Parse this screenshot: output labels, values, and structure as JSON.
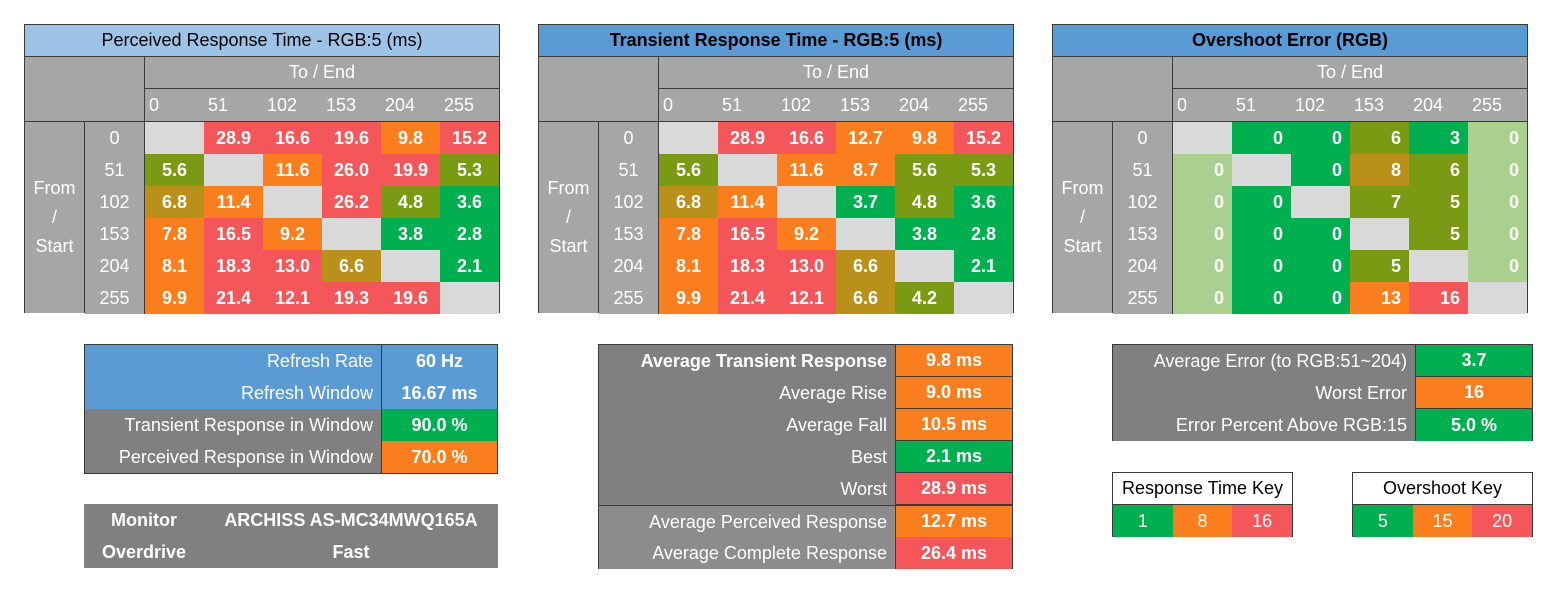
{
  "colors": {
    "green": "#00b050",
    "light_green": "#a9d08e",
    "olive": "#7a9a14",
    "mustard": "#b8901a",
    "orange": "#fa7e1e",
    "red": "#f4565a",
    "blank": "#d9d9d9",
    "gray_header": "#a6a6a6",
    "gray_dark": "#808080",
    "blue_light": "#9dc3e6",
    "blue": "#5b9bd5"
  },
  "chart_data": [
    {
      "type": "heatmap",
      "title": "Perceived Response Time - RGB:5 (ms)",
      "xlabel": "To / End",
      "ylabel": [
        "From",
        "/",
        "Start"
      ],
      "x": [
        "0",
        "51",
        "102",
        "153",
        "204",
        "255"
      ],
      "y": [
        "0",
        "51",
        "102",
        "153",
        "204",
        "255"
      ],
      "values": [
        [
          null,
          28.9,
          16.6,
          19.6,
          9.8,
          15.2
        ],
        [
          5.6,
          null,
          11.6,
          26.0,
          19.9,
          5.3
        ],
        [
          6.8,
          11.4,
          null,
          26.2,
          4.8,
          3.6
        ],
        [
          7.8,
          16.5,
          9.2,
          null,
          3.8,
          2.8
        ],
        [
          8.1,
          18.3,
          13.0,
          6.6,
          null,
          2.1
        ],
        [
          9.9,
          21.4,
          12.1,
          19.3,
          19.6,
          null
        ]
      ],
      "labels": [
        [
          "",
          "28.9",
          "16.6",
          "19.6",
          "9.8",
          "15.2"
        ],
        [
          "5.6",
          "",
          "11.6",
          "26.0",
          "19.9",
          "5.3"
        ],
        [
          "6.8",
          "11.4",
          "",
          "26.2",
          "4.8",
          "3.6"
        ],
        [
          "7.8",
          "16.5",
          "9.2",
          "",
          "3.8",
          "2.8"
        ],
        [
          "8.1",
          "18.3",
          "13.0",
          "6.6",
          "",
          "2.1"
        ],
        [
          "9.9",
          "21.4",
          "12.1",
          "19.3",
          "19.6",
          ""
        ]
      ],
      "cell_colors": [
        [
          "blank",
          "red",
          "red",
          "red",
          "orange",
          "red"
        ],
        [
          "olive",
          "blank",
          "orange",
          "red",
          "red",
          "olive"
        ],
        [
          "mustard",
          "orange",
          "blank",
          "red",
          "olive",
          "green"
        ],
        [
          "orange",
          "red",
          "orange",
          "blank",
          "green",
          "green"
        ],
        [
          "orange",
          "red",
          "red",
          "mustard",
          "blank",
          "green"
        ],
        [
          "orange",
          "red",
          "red",
          "red",
          "red",
          "blank"
        ]
      ]
    },
    {
      "type": "heatmap",
      "title": "Transient Response Time - RGB:5 (ms)",
      "xlabel": "To / End",
      "ylabel": [
        "From",
        "/",
        "Start"
      ],
      "x": [
        "0",
        "51",
        "102",
        "153",
        "204",
        "255"
      ],
      "y": [
        "0",
        "51",
        "102",
        "153",
        "204",
        "255"
      ],
      "values": [
        [
          null,
          28.9,
          16.6,
          12.7,
          9.8,
          15.2
        ],
        [
          5.6,
          null,
          11.6,
          8.7,
          5.6,
          5.3
        ],
        [
          6.8,
          11.4,
          null,
          3.7,
          4.8,
          3.6
        ],
        [
          7.8,
          16.5,
          9.2,
          null,
          3.8,
          2.8
        ],
        [
          8.1,
          18.3,
          13.0,
          6.6,
          null,
          2.1
        ],
        [
          9.9,
          21.4,
          12.1,
          6.6,
          4.2,
          null
        ]
      ],
      "labels": [
        [
          "",
          "28.9",
          "16.6",
          "12.7",
          "9.8",
          "15.2"
        ],
        [
          "5.6",
          "",
          "11.6",
          "8.7",
          "5.6",
          "5.3"
        ],
        [
          "6.8",
          "11.4",
          "",
          "3.7",
          "4.8",
          "3.6"
        ],
        [
          "7.8",
          "16.5",
          "9.2",
          "",
          "3.8",
          "2.8"
        ],
        [
          "8.1",
          "18.3",
          "13.0",
          "6.6",
          "",
          "2.1"
        ],
        [
          "9.9",
          "21.4",
          "12.1",
          "6.6",
          "4.2",
          ""
        ]
      ],
      "cell_colors": [
        [
          "blank",
          "red",
          "red",
          "orange",
          "orange",
          "red"
        ],
        [
          "olive",
          "blank",
          "orange",
          "orange",
          "olive",
          "olive"
        ],
        [
          "mustard",
          "orange",
          "blank",
          "green",
          "olive",
          "green"
        ],
        [
          "orange",
          "red",
          "orange",
          "blank",
          "green",
          "green"
        ],
        [
          "orange",
          "red",
          "red",
          "mustard",
          "blank",
          "green"
        ],
        [
          "orange",
          "red",
          "red",
          "mustard",
          "olive",
          "blank"
        ]
      ]
    },
    {
      "type": "heatmap",
      "title": "Overshoot Error (RGB)",
      "xlabel": "To / End",
      "ylabel": [
        "From",
        "/",
        "Start"
      ],
      "x": [
        "0",
        "51",
        "102",
        "153",
        "204",
        "255"
      ],
      "y": [
        "0",
        "51",
        "102",
        "153",
        "204",
        "255"
      ],
      "values": [
        [
          null,
          0,
          0,
          6,
          3,
          0
        ],
        [
          0,
          null,
          0,
          8,
          6,
          0
        ],
        [
          0,
          0,
          null,
          7,
          5,
          0
        ],
        [
          0,
          0,
          0,
          null,
          5,
          0
        ],
        [
          0,
          0,
          0,
          5,
          null,
          0
        ],
        [
          0,
          0,
          0,
          13,
          16,
          null
        ]
      ],
      "labels": [
        [
          "",
          "0",
          "0",
          "6",
          "3",
          "0"
        ],
        [
          "0",
          "",
          "0",
          "8",
          "6",
          "0"
        ],
        [
          "0",
          "0",
          "",
          "7",
          "5",
          "0"
        ],
        [
          "0",
          "0",
          "0",
          "",
          "5",
          "0"
        ],
        [
          "0",
          "0",
          "0",
          "5",
          "",
          "0"
        ],
        [
          "0",
          "0",
          "0",
          "13",
          "16",
          ""
        ]
      ],
      "cell_colors": [
        [
          "blank",
          "green",
          "green",
          "olive",
          "green",
          "light_green"
        ],
        [
          "light_green",
          "blank",
          "green",
          "mustard",
          "olive",
          "light_green"
        ],
        [
          "light_green",
          "green",
          "blank",
          "olive",
          "olive",
          "light_green"
        ],
        [
          "light_green",
          "green",
          "green",
          "blank",
          "olive",
          "light_green"
        ],
        [
          "light_green",
          "green",
          "green",
          "olive",
          "blank",
          "light_green"
        ],
        [
          "light_green",
          "green",
          "green",
          "orange",
          "red",
          "blank"
        ]
      ]
    }
  ],
  "refresh_table": [
    {
      "label": "Refresh Rate",
      "value": "60 Hz",
      "label_color": "blue",
      "value_color": "blue"
    },
    {
      "label": "Refresh Window",
      "value": "16.67 ms",
      "label_color": "blue",
      "value_color": "blue"
    },
    {
      "label": "Transient Response in Window",
      "value": "90.0 %",
      "label_color": "gray_dark",
      "value_color": "green"
    },
    {
      "label": "Perceived Response in Window",
      "value": "70.0 %",
      "label_color": "gray_dark",
      "value_color": "orange"
    }
  ],
  "monitor_table": [
    {
      "label": "Monitor",
      "value": "ARCHISS AS-MC34MWQ165A"
    },
    {
      "label": "Overdrive",
      "value": "Fast"
    }
  ],
  "average_table": [
    {
      "label": "Average Transient Response",
      "value": "9.8 ms",
      "value_color": "orange",
      "bold": true
    },
    {
      "label": "Average Rise",
      "value": "9.0 ms",
      "value_color": "orange"
    },
    {
      "label": "Average Fall",
      "value": "10.5 ms",
      "value_color": "orange"
    },
    {
      "label": "Best",
      "value": "2.1 ms",
      "value_color": "green"
    },
    {
      "label": "Worst",
      "value": "28.9 ms",
      "value_color": "red"
    },
    {
      "label": "Average Perceived Response",
      "value": "12.7 ms",
      "value_color": "orange",
      "light": true
    },
    {
      "label": "Average Complete Response",
      "value": "26.4 ms",
      "value_color": "red",
      "light": true
    }
  ],
  "error_table": [
    {
      "label": "Average Error (to RGB:51~204)",
      "value": "3.7",
      "value_color": "green"
    },
    {
      "label": "Worst Error",
      "value": "16",
      "value_color": "orange"
    },
    {
      "label": "Error Percent Above RGB:15",
      "value": "5.0 %",
      "value_color": "green"
    }
  ],
  "response_key": {
    "title": "Response Time Key",
    "values": [
      "1",
      "8",
      "16"
    ]
  },
  "overshoot_key": {
    "title": "Overshoot Key",
    "values": [
      "5",
      "15",
      "20"
    ]
  }
}
